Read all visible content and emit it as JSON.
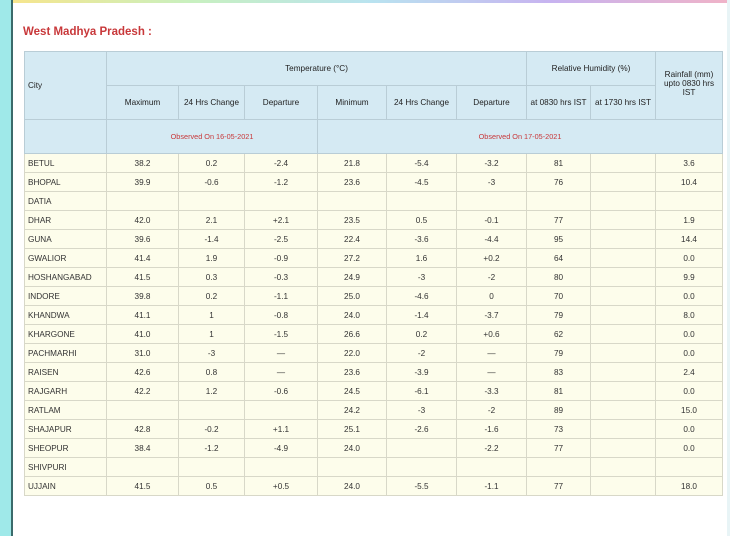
{
  "section_title": "West Madhya Pradesh :",
  "headers": {
    "city": "City",
    "temperature": "Temperature (°C)",
    "humidity": "Relative Humidity (%)",
    "rainfall": "Rainfall (mm) upto 0830 hrs IST",
    "maximum": "Maximum",
    "max_change": "24 Hrs Change",
    "max_departure": "Departure",
    "minimum": "Minimum",
    "min_change": "24 Hrs Change",
    "min_departure": "Departure",
    "rh_0830": "at 0830 hrs IST",
    "rh_1730": "at 1730 hrs IST",
    "observed_max": "Observed On 16-05-2021",
    "observed_min": "Observed On 17-05-2021"
  },
  "rows": [
    [
      "BETUL",
      "38.2",
      "0.2",
      "-2.4",
      "21.8",
      "-5.4",
      "-3.2",
      "81",
      "",
      "3.6"
    ],
    [
      "BHOPAL",
      "39.9",
      "-0.6",
      "-1.2",
      "23.6",
      "-4.5",
      "-3",
      "76",
      "",
      "10.4"
    ],
    [
      "DATIA",
      "",
      "",
      "",
      "",
      "",
      "",
      "",
      "",
      ""
    ],
    [
      "DHAR",
      "42.0",
      "2.1",
      "+2.1",
      "23.5",
      "0.5",
      "-0.1",
      "77",
      "",
      "1.9"
    ],
    [
      "GUNA",
      "39.6",
      "-1.4",
      "-2.5",
      "22.4",
      "-3.6",
      "-4.4",
      "95",
      "",
      "14.4"
    ],
    [
      "GWALIOR",
      "41.4",
      "1.9",
      "-0.9",
      "27.2",
      "1.6",
      "+0.2",
      "64",
      "",
      "0.0"
    ],
    [
      "HOSHANGABAD",
      "41.5",
      "0.3",
      "-0.3",
      "24.9",
      "-3",
      "-2",
      "80",
      "",
      "9.9"
    ],
    [
      "INDORE",
      "39.8",
      "0.2",
      "-1.1",
      "25.0",
      "-4.6",
      "0",
      "70",
      "",
      "0.0"
    ],
    [
      "KHANDWA",
      "41.1",
      "1",
      "-0.8",
      "24.0",
      "-1.4",
      "-3.7",
      "79",
      "",
      "8.0"
    ],
    [
      "KHARGONE",
      "41.0",
      "1",
      "-1.5",
      "26.6",
      "0.2",
      "+0.6",
      "62",
      "",
      "0.0"
    ],
    [
      "PACHMARHI",
      "31.0",
      "-3",
      "—",
      "22.0",
      "-2",
      "—",
      "79",
      "",
      "0.0"
    ],
    [
      "RAISEN",
      "42.6",
      "0.8",
      "—",
      "23.6",
      "-3.9",
      "—",
      "83",
      "",
      "2.4"
    ],
    [
      "RAJGARH",
      "42.2",
      "1.2",
      "-0.6",
      "24.5",
      "-6.1",
      "-3.3",
      "81",
      "",
      "0.0"
    ],
    [
      "RATLAM",
      "",
      "",
      "",
      "24.2",
      "-3",
      "-2",
      "89",
      "",
      "15.0"
    ],
    [
      "SHAJAPUR",
      "42.8",
      "-0.2",
      "+1.1",
      "25.1",
      "-2.6",
      "-1.6",
      "73",
      "",
      "0.0"
    ],
    [
      "SHEOPUR",
      "38.4",
      "-1.2",
      "-4.9",
      "24.0",
      "",
      "-2.2",
      "77",
      "",
      "0.0"
    ],
    [
      "SHIVPURI",
      "",
      "",
      "",
      "",
      "",
      "",
      "",
      "",
      ""
    ],
    [
      "UJJAIN",
      "41.5",
      "0.5",
      "+0.5",
      "24.0",
      "-5.5",
      "-1.1",
      "77",
      "",
      "18.0"
    ]
  ]
}
